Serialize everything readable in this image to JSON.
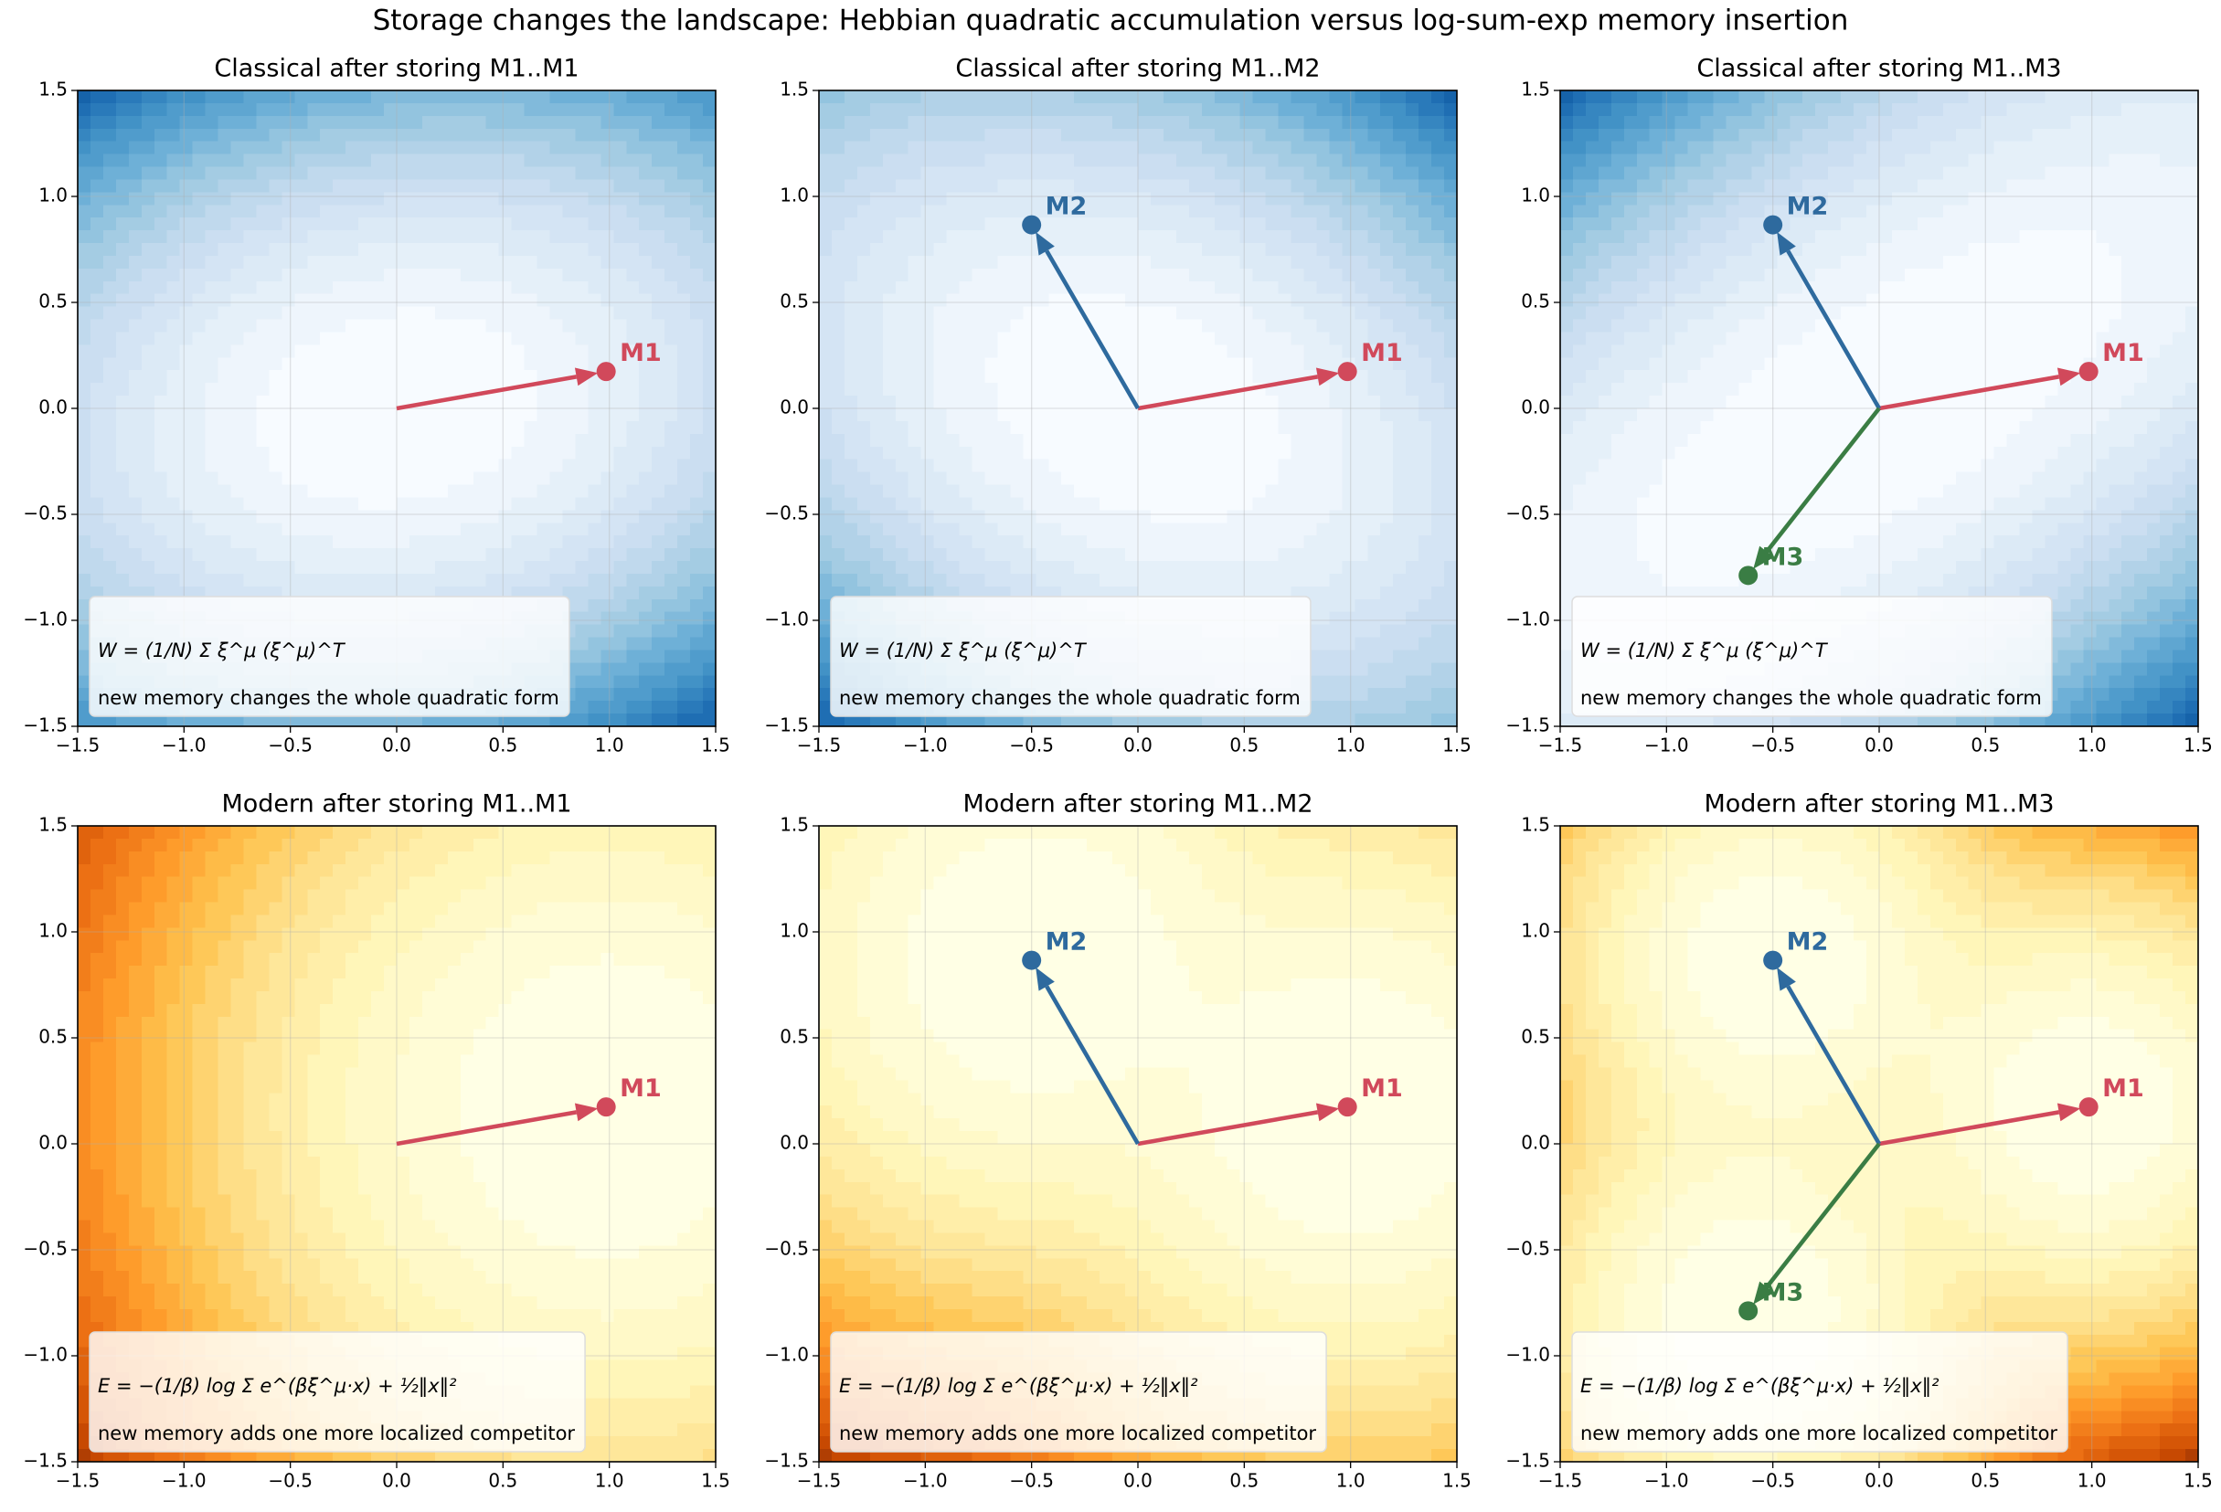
{
  "title": "Storage changes the landscape: Hebbian quadratic accumulation versus log-sum-exp memory insertion",
  "chart_data": [
    {
      "type": "hebbian",
      "colormap": "Blues",
      "title": "Classical after storing M1..M1",
      "xlim": [
        -1.5,
        1.5
      ],
      "ylim": [
        -1.5,
        1.5
      ],
      "xticks": [
        {
          "value": -1.5,
          "label": "−1.5"
        },
        {
          "value": -1,
          "label": "−1.0"
        },
        {
          "value": -0.5,
          "label": "−0.5"
        },
        {
          "value": 0,
          "label": "0.0"
        },
        0.5,
        {
          "value": 1,
          "label": "1.0"
        },
        1.5
      ],
      "yticks": [
        {
          "value": -1.5,
          "label": "−1.5"
        },
        {
          "value": -1,
          "label": "−1.0"
        },
        {
          "value": -0.5,
          "label": "−0.5"
        },
        {
          "value": 0,
          "label": "0.0"
        },
        0.5,
        {
          "value": 1,
          "label": "1.0"
        },
        1.5
      ],
      "grid": true,
      "series": [
        {
          "name": "M1",
          "color": "#d1495b",
          "x": [
            0.985
          ],
          "values": [
            0.174
          ]
        }
      ],
      "annotations": [
        "W = (1/N) Σ ξ^μ (ξ^μ)^T",
        "new memory changes the whole quadratic form"
      ]
    },
    {
      "type": "hebbian",
      "colormap": "Blues",
      "title": "Classical after storing M1..M2",
      "xlim": [
        -1.5,
        1.5
      ],
      "ylim": [
        -1.5,
        1.5
      ],
      "xticks": [
        {
          "value": -1.5,
          "label": "−1.5"
        },
        {
          "value": -1,
          "label": "−1.0"
        },
        {
          "value": -0.5,
          "label": "−0.5"
        },
        {
          "value": 0,
          "label": "0.0"
        },
        0.5,
        {
          "value": 1,
          "label": "1.0"
        },
        1.5
      ],
      "yticks": [
        {
          "value": -1.5,
          "label": "−1.5"
        },
        {
          "value": -1,
          "label": "−1.0"
        },
        {
          "value": -0.5,
          "label": "−0.5"
        },
        {
          "value": 0,
          "label": "0.0"
        },
        0.5,
        {
          "value": 1,
          "label": "1.0"
        },
        1.5
      ],
      "grid": true,
      "series": [
        {
          "name": "M1",
          "color": "#d1495b",
          "x": [
            0.985
          ],
          "values": [
            0.174
          ]
        },
        {
          "name": "M2",
          "color": "#2e6a9e",
          "x": [
            -0.5
          ],
          "values": [
            0.866
          ]
        }
      ],
      "annotations": [
        "W = (1/N) Σ ξ^μ (ξ^μ)^T",
        "new memory changes the whole quadratic form"
      ]
    },
    {
      "type": "hebbian",
      "colormap": "Blues",
      "title": "Classical after storing M1..M3",
      "xlim": [
        -1.5,
        1.5
      ],
      "ylim": [
        -1.5,
        1.5
      ],
      "xticks": [
        {
          "value": -1.5,
          "label": "−1.5"
        },
        {
          "value": -1,
          "label": "−1.0"
        },
        {
          "value": -0.5,
          "label": "−0.5"
        },
        {
          "value": 0,
          "label": "0.0"
        },
        0.5,
        {
          "value": 1,
          "label": "1.0"
        },
        1.5
      ],
      "yticks": [
        {
          "value": -1.5,
          "label": "−1.5"
        },
        {
          "value": -1,
          "label": "−1.0"
        },
        {
          "value": -0.5,
          "label": "−0.5"
        },
        {
          "value": 0,
          "label": "0.0"
        },
        0.5,
        {
          "value": 1,
          "label": "1.0"
        },
        1.5
      ],
      "grid": true,
      "series": [
        {
          "name": "M1",
          "color": "#d1495b",
          "x": [
            0.985
          ],
          "values": [
            0.174
          ]
        },
        {
          "name": "M2",
          "color": "#2e6a9e",
          "x": [
            -0.5
          ],
          "values": [
            0.866
          ]
        },
        {
          "name": "M3",
          "color": "#3a7d44",
          "x": [
            -0.616
          ],
          "values": [
            -0.788
          ]
        }
      ],
      "annotations": [
        "W = (1/N) Σ ξ^μ (ξ^μ)^T",
        "new memory changes the whole quadratic form"
      ]
    },
    {
      "type": "lse",
      "colormap": "YlOrBr",
      "title": "Modern after storing M1..M1",
      "xlim": [
        -1.5,
        1.5
      ],
      "ylim": [
        -1.5,
        1.5
      ],
      "xticks": [
        {
          "value": -1.5,
          "label": "−1.5"
        },
        {
          "value": -1,
          "label": "−1.0"
        },
        {
          "value": -0.5,
          "label": "−0.5"
        },
        {
          "value": 0,
          "label": "0.0"
        },
        0.5,
        {
          "value": 1,
          "label": "1.0"
        },
        1.5
      ],
      "yticks": [
        {
          "value": -1.5,
          "label": "−1.5"
        },
        {
          "value": -1,
          "label": "−1.0"
        },
        {
          "value": -0.5,
          "label": "−0.5"
        },
        {
          "value": 0,
          "label": "0.0"
        },
        0.5,
        {
          "value": 1,
          "label": "1.0"
        },
        1.5
      ],
      "grid": true,
      "series": [
        {
          "name": "M1",
          "color": "#d1495b",
          "x": [
            0.985
          ],
          "values": [
            0.174
          ]
        }
      ],
      "annotations": [
        "E = −(1/β) log Σ e^(βξ^μ·x) + ½‖x‖²",
        "new memory adds one more localized competitor"
      ]
    },
    {
      "type": "lse",
      "colormap": "YlOrBr",
      "title": "Modern after storing M1..M2",
      "xlim": [
        -1.5,
        1.5
      ],
      "ylim": [
        -1.5,
        1.5
      ],
      "xticks": [
        {
          "value": -1.5,
          "label": "−1.5"
        },
        {
          "value": -1,
          "label": "−1.0"
        },
        {
          "value": -0.5,
          "label": "−0.5"
        },
        {
          "value": 0,
          "label": "0.0"
        },
        0.5,
        {
          "value": 1,
          "label": "1.0"
        },
        1.5
      ],
      "yticks": [
        {
          "value": -1.5,
          "label": "−1.5"
        },
        {
          "value": -1,
          "label": "−1.0"
        },
        {
          "value": -0.5,
          "label": "−0.5"
        },
        {
          "value": 0,
          "label": "0.0"
        },
        0.5,
        {
          "value": 1,
          "label": "1.0"
        },
        1.5
      ],
      "grid": true,
      "series": [
        {
          "name": "M1",
          "color": "#d1495b",
          "x": [
            0.985
          ],
          "values": [
            0.174
          ]
        },
        {
          "name": "M2",
          "color": "#2e6a9e",
          "x": [
            -0.5
          ],
          "values": [
            0.866
          ]
        }
      ],
      "annotations": [
        "E = −(1/β) log Σ e^(βξ^μ·x) + ½‖x‖²",
        "new memory adds one more localized competitor"
      ]
    },
    {
      "type": "lse",
      "colormap": "YlOrBr",
      "title": "Modern after storing M1..M3",
      "xlim": [
        -1.5,
        1.5
      ],
      "ylim": [
        -1.5,
        1.5
      ],
      "xticks": [
        {
          "value": -1.5,
          "label": "−1.5"
        },
        {
          "value": -1,
          "label": "−1.0"
        },
        {
          "value": -0.5,
          "label": "−0.5"
        },
        {
          "value": 0,
          "label": "0.0"
        },
        0.5,
        {
          "value": 1,
          "label": "1.0"
        },
        1.5
      ],
      "yticks": [
        {
          "value": -1.5,
          "label": "−1.5"
        },
        {
          "value": -1,
          "label": "−1.0"
        },
        {
          "value": -0.5,
          "label": "−0.5"
        },
        {
          "value": 0,
          "label": "0.0"
        },
        0.5,
        {
          "value": 1,
          "label": "1.0"
        },
        1.5
      ],
      "grid": true,
      "series": [
        {
          "name": "M1",
          "color": "#d1495b",
          "x": [
            0.985
          ],
          "values": [
            0.174
          ]
        },
        {
          "name": "M2",
          "color": "#2e6a9e",
          "x": [
            -0.5
          ],
          "values": [
            0.866
          ]
        },
        {
          "name": "M3",
          "color": "#3a7d44",
          "x": [
            -0.616
          ],
          "values": [
            -0.788
          ]
        }
      ],
      "annotations": [
        "E = −(1/β) log Σ e^(βξ^μ·x) + ½‖x‖²",
        "new memory adds one more localized competitor"
      ]
    }
  ]
}
